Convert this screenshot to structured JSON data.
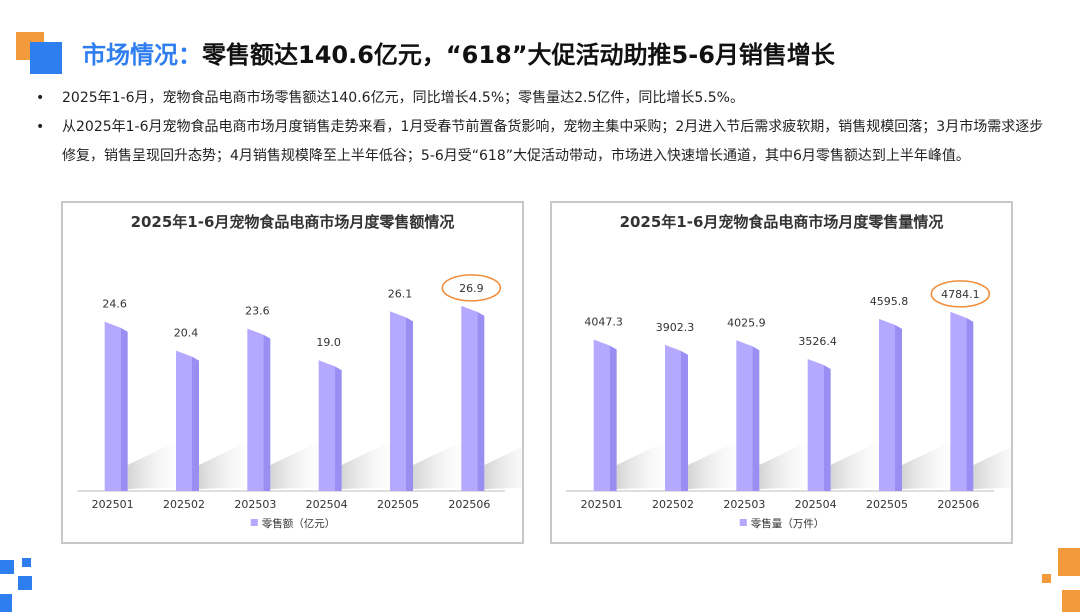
{
  "header": {
    "title_accent": "市场情况：",
    "title_main": "零售额达140.6亿元，“618”大促活动助推5-6月销售增长"
  },
  "bullets": [
    "2025年1-6月，宠物食品电商市场零售额达140.6亿元，同比增长4.5%；零售量达2.5亿件，同比增长5.5%。",
    "从2025年1-6月宠物食品电商市场月度销售走势来看，1月受春节前置备货影响，宠物主集中采购；2月进入节后需求疲软期，销售规模回落；3月市场需求逐步修复，销售呈现回升态势；4月销售规模降至上半年低谷；5-6月受“618”大促活动带动，市场进入快速增长通道，其中6月零售额达到上半年峰值。"
  ],
  "colors": {
    "accent_blue": "#2f7ef0",
    "accent_orange": "#f39a3c",
    "bar_front": "#b4a9ff",
    "bar_side": "#9a8ef2",
    "highlight_ring": "#ef8d3c"
  },
  "chart_data": [
    {
      "type": "bar",
      "title": "2025年1-6月宠物食品电商市场月度零售额情况",
      "categories": [
        "202501",
        "202502",
        "202503",
        "202504",
        "202505",
        "202506"
      ],
      "series": [
        {
          "name": "零售额（亿元）",
          "values": [
            24.6,
            20.4,
            23.6,
            19.0,
            26.1,
            26.9
          ]
        }
      ],
      "data_labels": [
        "24.6",
        "20.4",
        "23.6",
        "19.0",
        "26.1",
        "26.9"
      ],
      "highlight_index": 5,
      "ylim": [
        0,
        34
      ],
      "legend_position": "bottom",
      "grid": false
    },
    {
      "type": "bar",
      "title": "2025年1-6月宠物食品电商市场月度零售量情况",
      "categories": [
        "202501",
        "202502",
        "202503",
        "202504",
        "202505",
        "202506"
      ],
      "series": [
        {
          "name": "零售量（万件）",
          "values": [
            4047.3,
            3902.3,
            4025.9,
            3526.4,
            4595.8,
            4784.1
          ]
        }
      ],
      "data_labels": [
        "4047.3",
        "3902.3",
        "4025.9",
        "3526.4",
        "4595.8",
        "4784.1"
      ],
      "highlight_index": 5,
      "ylim": [
        0,
        6250
      ],
      "legend_position": "bottom",
      "grid": false
    }
  ]
}
